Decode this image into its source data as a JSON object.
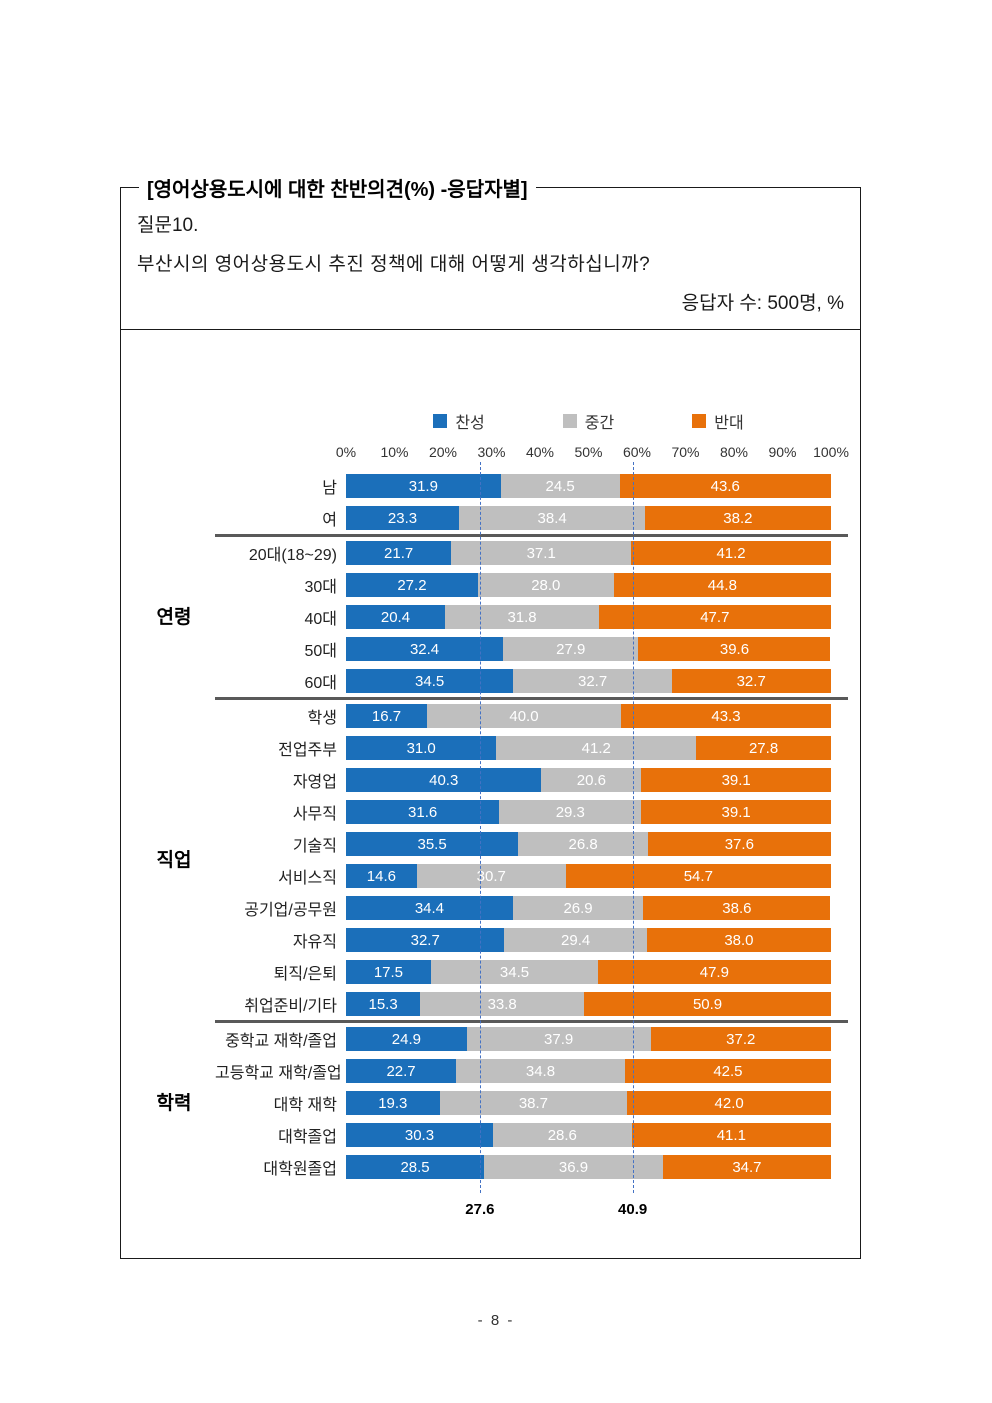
{
  "page": {
    "box_title": "[영어상용도시에 대한 찬반의견(%) -응답자별]",
    "question_label": "질문10.",
    "question_text": "부산시의 영어상용도시 추진 정책에 대해 어떻게 생각하십니까?",
    "respondents_note": "응답자 수: 500명, %",
    "page_number": "- 8 -"
  },
  "chart_data": {
    "type": "bar",
    "stacked": true,
    "orientation": "horizontal",
    "x_range": [
      0,
      100
    ],
    "x_ticks": [
      "0%",
      "10%",
      "20%",
      "30%",
      "40%",
      "50%",
      "60%",
      "70%",
      "80%",
      "90%",
      "100%"
    ],
    "legend_position": "top",
    "legend": [
      {
        "name": "찬성",
        "color": "#1b6fba"
      },
      {
        "name": "중간",
        "color": "#bfbfbf"
      },
      {
        "name": "반대",
        "color": "#e8710a"
      }
    ],
    "groups": [
      {
        "label": "",
        "rows": [
          {
            "label": "남",
            "values": [
              31.9,
              24.5,
              43.6
            ]
          },
          {
            "label": "여",
            "values": [
              23.3,
              38.4,
              38.2
            ]
          }
        ]
      },
      {
        "label": "연령",
        "rows": [
          {
            "label": "20대(18~29)",
            "values": [
              21.7,
              37.1,
              41.2
            ]
          },
          {
            "label": "30대",
            "values": [
              27.2,
              28.0,
              44.8
            ]
          },
          {
            "label": "40대",
            "values": [
              20.4,
              31.8,
              47.7
            ]
          },
          {
            "label": "50대",
            "values": [
              32.4,
              27.9,
              39.6
            ]
          },
          {
            "label": "60대",
            "values": [
              34.5,
              32.7,
              32.7
            ]
          }
        ]
      },
      {
        "label": "직업",
        "rows": [
          {
            "label": "학생",
            "values": [
              16.7,
              40.0,
              43.3
            ]
          },
          {
            "label": "전업주부",
            "values": [
              31.0,
              41.2,
              27.8
            ]
          },
          {
            "label": "자영업",
            "values": [
              40.3,
              20.6,
              39.1
            ]
          },
          {
            "label": "사무직",
            "values": [
              31.6,
              29.3,
              39.1
            ]
          },
          {
            "label": "기술직",
            "values": [
              35.5,
              26.8,
              37.6
            ]
          },
          {
            "label": "서비스직",
            "values": [
              14.6,
              30.7,
              54.7
            ]
          },
          {
            "label": "공기업/공무원",
            "values": [
              34.4,
              26.9,
              38.6
            ]
          },
          {
            "label": "자유직",
            "values": [
              32.7,
              29.4,
              38.0
            ]
          },
          {
            "label": "퇴직/은퇴",
            "values": [
              17.5,
              34.5,
              47.9
            ]
          },
          {
            "label": "취업준비/기타",
            "values": [
              15.3,
              33.8,
              50.9
            ]
          }
        ]
      },
      {
        "label": "학력",
        "rows": [
          {
            "label": "중학교 재학/졸업",
            "values": [
              24.9,
              37.9,
              37.2
            ]
          },
          {
            "label": "고등학교 재학/졸업",
            "values": [
              22.7,
              34.8,
              42.5
            ]
          },
          {
            "label": "대학 재학",
            "values": [
              19.3,
              38.7,
              42.0
            ]
          },
          {
            "label": "대학졸업",
            "values": [
              30.3,
              28.6,
              41.1
            ]
          },
          {
            "label": "대학원졸업",
            "values": [
              28.5,
              36.9,
              34.7
            ]
          }
        ]
      }
    ],
    "reference_lines": [
      {
        "pct": 27.6,
        "label": "27.6"
      },
      {
        "pct": 59.1,
        "label": "40.9"
      }
    ]
  }
}
